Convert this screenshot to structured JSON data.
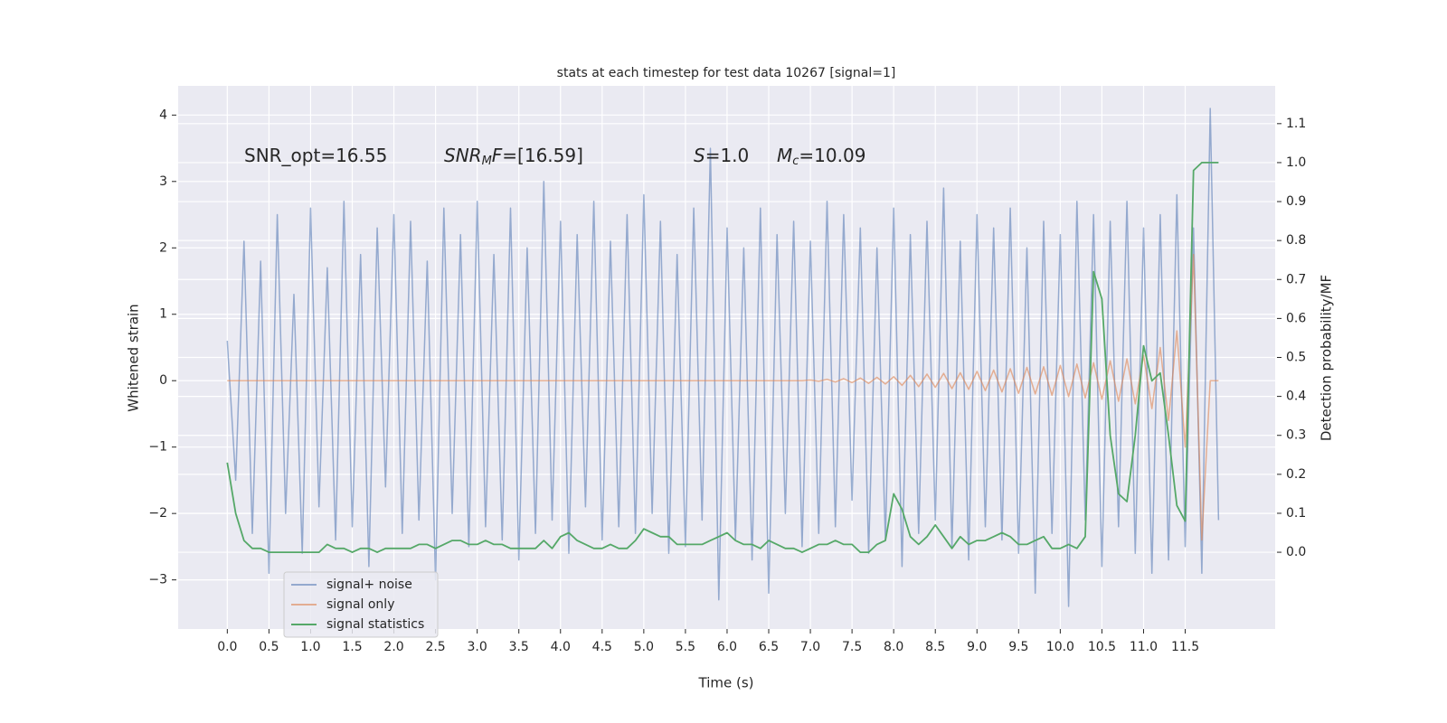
{
  "chart_data": {
    "type": "line",
    "title": "stats at each timestep for test data 10267 [signal=1]",
    "xlabel": "Time (s)",
    "ylabel": "Whitened strain",
    "y2label": "Detection probability/MF",
    "annotations": [
      {
        "parts": [
          {
            "text": "SNR_opt=16.55"
          }
        ]
      },
      {
        "parts": [
          {
            "text": "SNR",
            "style": "italic"
          },
          {
            "text": "M",
            "style": "sub"
          },
          {
            "text": "F",
            "style": "italic"
          },
          {
            "text": "=[16.59]"
          }
        ]
      },
      {
        "parts": [
          {
            "text": "S",
            "style": "italic"
          },
          {
            "text": "=1.0"
          }
        ]
      },
      {
        "parts": [
          {
            "text": "M",
            "style": "italic"
          },
          {
            "text": "c",
            "style": "sub"
          },
          {
            "text": "=10.09"
          }
        ]
      }
    ],
    "x": [
      0,
      0.1,
      0.2,
      0.3,
      0.4,
      0.5,
      0.6,
      0.7,
      0.8,
      0.9,
      1,
      1.1,
      1.2,
      1.3,
      1.4,
      1.5,
      1.6,
      1.7,
      1.8,
      1.9,
      2,
      2.1,
      2.2,
      2.3,
      2.4,
      2.5,
      2.6,
      2.7,
      2.8,
      2.9,
      3,
      3.1,
      3.2,
      3.3,
      3.4,
      3.5,
      3.6,
      3.7,
      3.8,
      3.9,
      4,
      4.1,
      4.2,
      4.3,
      4.4,
      4.5,
      4.6,
      4.7,
      4.8,
      4.9,
      5,
      5.1,
      5.2,
      5.3,
      5.4,
      5.5,
      5.6,
      5.7,
      5.8,
      5.9,
      6,
      6.1,
      6.2,
      6.3,
      6.4,
      6.5,
      6.6,
      6.7,
      6.8,
      6.9,
      7,
      7.1,
      7.2,
      7.3,
      7.4,
      7.5,
      7.6,
      7.7,
      7.8,
      7.9,
      8,
      8.1,
      8.2,
      8.3,
      8.4,
      8.5,
      8.6,
      8.7,
      8.8,
      8.9,
      9,
      9.1,
      9.2,
      9.3,
      9.4,
      9.5,
      9.6,
      9.7,
      9.8,
      9.9,
      10,
      10.1,
      10.2,
      10.3,
      10.4,
      10.5,
      10.6,
      10.7,
      10.8,
      10.9,
      11,
      11.1,
      11.2,
      11.3,
      11.4,
      11.5,
      11.6,
      11.7,
      11.8,
      11.9
    ],
    "series": [
      {
        "name": "signal+ noise",
        "color": "#4c72b0",
        "alpha": 0.55,
        "values": [
          0.6,
          -1.5,
          2.1,
          -2.3,
          1.8,
          -2.9,
          2.5,
          -2.0,
          1.3,
          -2.6,
          2.6,
          -1.9,
          1.7,
          -2.4,
          2.7,
          -2.2,
          1.9,
          -2.8,
          2.3,
          -1.6,
          2.5,
          -2.3,
          2.4,
          -2.1,
          1.8,
          -3.0,
          2.6,
          -2.0,
          2.2,
          -2.5,
          2.7,
          -2.2,
          1.9,
          -2.4,
          2.6,
          -2.7,
          2.0,
          -2.3,
          3.0,
          -2.1,
          2.4,
          -2.6,
          2.2,
          -1.9,
          2.7,
          -2.4,
          2.1,
          -2.2,
          2.5,
          -2.3,
          2.8,
          -2.0,
          2.4,
          -2.6,
          1.9,
          -2.5,
          2.6,
          -2.1,
          3.5,
          -3.3,
          2.3,
          -2.4,
          2.0,
          -2.7,
          2.6,
          -3.2,
          2.2,
          -2.0,
          2.4,
          -2.5,
          2.1,
          -2.3,
          2.7,
          -2.2,
          2.5,
          -1.8,
          2.3,
          -2.6,
          2.0,
          -2.4,
          2.6,
          -2.8,
          2.2,
          -2.3,
          2.4,
          -2.1,
          2.9,
          -2.5,
          2.1,
          -2.7,
          2.5,
          -2.2,
          2.3,
          -2.4,
          2.6,
          -2.6,
          2.0,
          -3.2,
          2.4,
          -2.3,
          2.2,
          -3.4,
          2.7,
          -2.1,
          2.5,
          -2.8,
          2.4,
          -2.2,
          2.7,
          -2.6,
          2.3,
          -2.9,
          2.5,
          -2.7,
          2.8,
          -2.5,
          2.3,
          -2.9,
          4.1,
          -2.1
        ]
      },
      {
        "name": "signal only",
        "color": "#dd8452",
        "alpha": 0.6,
        "values": [
          0,
          0,
          0,
          0,
          0,
          0,
          0,
          0,
          0,
          0,
          0,
          0,
          0,
          0,
          0,
          0,
          0,
          0,
          0,
          0,
          0,
          0,
          0,
          0,
          0,
          0,
          0,
          0,
          0,
          0,
          0,
          0,
          0,
          0,
          0,
          0,
          0,
          0,
          0,
          0,
          0,
          0,
          0,
          0,
          0,
          0,
          0,
          0,
          0,
          0,
          0,
          0,
          0,
          0,
          0,
          0,
          0,
          0,
          0,
          0,
          0,
          0,
          0,
          0,
          0,
          0,
          0,
          0,
          0,
          0,
          0.01,
          -0.01,
          0.02,
          -0.02,
          0.03,
          -0.03,
          0.04,
          -0.04,
          0.05,
          -0.05,
          0.06,
          -0.07,
          0.08,
          -0.09,
          0.1,
          -0.1,
          0.11,
          -0.12,
          0.12,
          -0.13,
          0.14,
          -0.15,
          0.16,
          -0.17,
          0.18,
          -0.19,
          0.2,
          -0.2,
          0.21,
          -0.22,
          0.23,
          -0.24,
          0.25,
          -0.26,
          0.27,
          -0.28,
          0.3,
          -0.31,
          0.33,
          -0.35,
          0.38,
          -0.42,
          0.5,
          -0.6,
          0.75,
          -1.0,
          1.9,
          -2.4,
          0,
          0
        ]
      },
      {
        "name": "signal statistics",
        "color": "#55a868",
        "alpha": 1,
        "axis": "y2",
        "values": [
          0.23,
          0.1,
          0.03,
          0.01,
          0.01,
          0.0,
          0.0,
          0.0,
          0.0,
          0.0,
          0.0,
          0.0,
          0.02,
          0.01,
          0.01,
          0.0,
          0.01,
          0.01,
          0.0,
          0.01,
          0.01,
          0.01,
          0.01,
          0.02,
          0.02,
          0.01,
          0.02,
          0.03,
          0.03,
          0.02,
          0.02,
          0.03,
          0.02,
          0.02,
          0.01,
          0.01,
          0.01,
          0.01,
          0.03,
          0.01,
          0.04,
          0.05,
          0.03,
          0.02,
          0.01,
          0.01,
          0.02,
          0.01,
          0.01,
          0.03,
          0.06,
          0.05,
          0.04,
          0.04,
          0.02,
          0.02,
          0.02,
          0.02,
          0.03,
          0.04,
          0.05,
          0.03,
          0.02,
          0.02,
          0.01,
          0.03,
          0.02,
          0.01,
          0.01,
          0.0,
          0.01,
          0.02,
          0.02,
          0.03,
          0.02,
          0.02,
          0.0,
          0.0,
          0.02,
          0.03,
          0.15,
          0.11,
          0.04,
          0.02,
          0.04,
          0.07,
          0.04,
          0.01,
          0.04,
          0.02,
          0.03,
          0.03,
          0.04,
          0.05,
          0.04,
          0.02,
          0.02,
          0.03,
          0.04,
          0.01,
          0.01,
          0.02,
          0.01,
          0.04,
          0.72,
          0.65,
          0.3,
          0.15,
          0.13,
          0.3,
          0.53,
          0.44,
          0.46,
          0.3,
          0.12,
          0.08,
          0.98,
          1.0,
          1.0,
          1.0
        ]
      }
    ],
    "xlim": [
      -0.59,
      12.58
    ],
    "xticks": [
      {
        "value": 0,
        "label": "0.0"
      },
      0.5,
      {
        "value": 1,
        "label": "1.0"
      },
      1.5,
      {
        "value": 2,
        "label": "2.0"
      },
      2.5,
      {
        "value": 3,
        "label": "3.0"
      },
      3.5,
      {
        "value": 4,
        "label": "4.0"
      },
      4.5,
      {
        "value": 5,
        "label": "5.0"
      },
      5.5,
      {
        "value": 6,
        "label": "6.0"
      },
      6.5,
      {
        "value": 7,
        "label": "7.0"
      },
      7.5,
      {
        "value": 8,
        "label": "8.0"
      },
      8.5,
      {
        "value": 9,
        "label": "9.0"
      },
      9.5,
      {
        "value": 10,
        "label": "10.0"
      },
      10.5,
      {
        "value": 11,
        "label": "11.0"
      },
      11.5
    ],
    "ylim": [
      -3.74,
      4.44
    ],
    "yticks": [
      {
        "value": -3,
        "label": "−3"
      },
      {
        "value": -2,
        "label": "−2"
      },
      {
        "value": -1,
        "label": "−1"
      },
      0,
      1,
      2,
      3,
      4
    ],
    "y2lim": [
      -0.197,
      1.197
    ],
    "y2ticks": [
      {
        "value": 0,
        "label": "0.0"
      },
      0.1,
      0.2,
      0.3,
      0.4,
      0.5,
      0.6,
      0.7,
      0.8,
      0.9,
      {
        "value": 1,
        "label": "1.0"
      },
      1.1
    ],
    "grid": true,
    "legend": "lower left"
  }
}
